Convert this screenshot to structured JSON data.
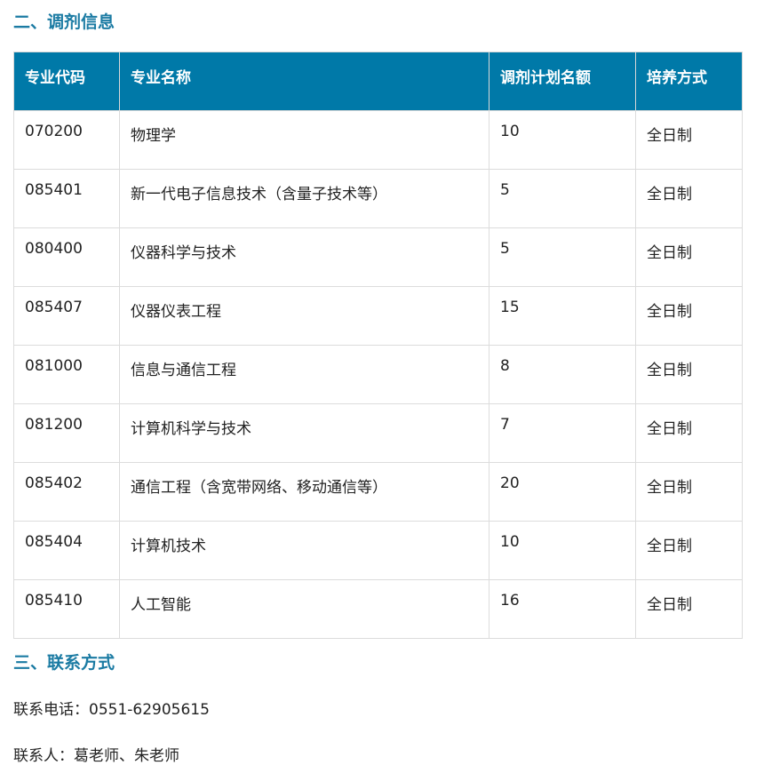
{
  "section2_title": "二、调剂信息",
  "table": {
    "headers": [
      "专业代码",
      "专业名称",
      "调剂计划名额",
      "培养方式"
    ],
    "rows": [
      [
        "070200",
        "物理学",
        "10",
        "全日制"
      ],
      [
        "085401",
        "新一代电子信息技术（含量子技术等）",
        "5",
        "全日制"
      ],
      [
        "080400",
        "仪器科学与技术",
        "5",
        "全日制"
      ],
      [
        "085407",
        "仪器仪表工程",
        "15",
        "全日制"
      ],
      [
        "081000",
        "信息与通信工程",
        "8",
        "全日制"
      ],
      [
        "081200",
        "计算机科学与技术",
        "7",
        "全日制"
      ],
      [
        "085402",
        "通信工程（含宽带网络、移动通信等）",
        "20",
        "全日制"
      ],
      [
        "085404",
        "计算机技术",
        "10",
        "全日制"
      ],
      [
        "085410",
        "人工智能",
        "16",
        "全日制"
      ]
    ]
  },
  "section3_title": "三、联系方式",
  "contact_phone": "联系电话：0551-62905615",
  "contact_person": "联系人：葛老师、朱老师"
}
